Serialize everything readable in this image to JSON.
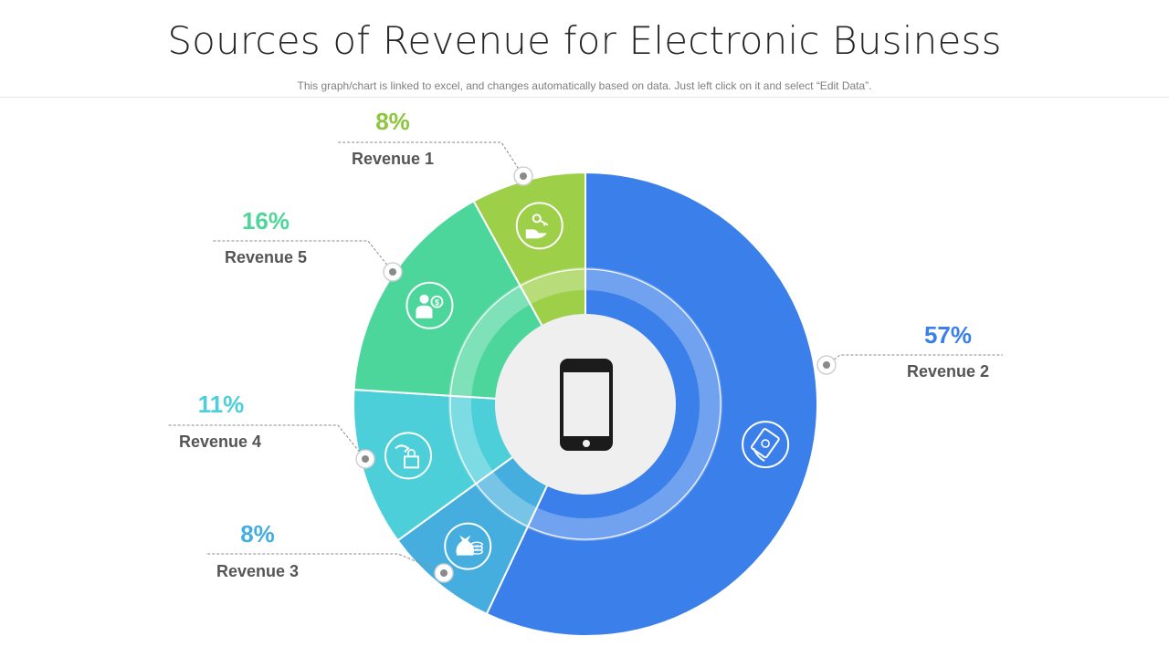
{
  "title": "Sources of Revenue for Electronic Business",
  "subtitle": "This graph/chart is linked to excel, and changes automatically based on data. Just left click on it and select “Edit Data”.",
  "center_icon": "smartphone-icon",
  "chart_data": {
    "type": "pie",
    "variant": "donut",
    "start": "top",
    "direction": "clockwise",
    "slices": [
      {
        "label": "Revenue 2",
        "value": 57,
        "display": "57%",
        "color": "#3b7fea",
        "label_color": "#3b7fea",
        "icon": "hand-money-icon"
      },
      {
        "label": "Revenue 3",
        "value": 8,
        "display": "8%",
        "color": "#45aede",
        "label_color": "#45aede",
        "icon": "money-bag-coins-icon"
      },
      {
        "label": "Revenue 4",
        "value": 11,
        "display": "11%",
        "color": "#4ccfd8",
        "label_color": "#4ccfd8",
        "icon": "hand-shopping-bag-icon"
      },
      {
        "label": "Revenue 5",
        "value": 16,
        "display": "16%",
        "color": "#4dd69b",
        "label_color": "#4dd69b",
        "icon": "businessman-money-icon"
      },
      {
        "label": "Revenue 1",
        "value": 8,
        "display": "8%",
        "color": "#9ecf48",
        "label_color": "#8cc63f",
        "icon": "hand-key-icon"
      }
    ]
  }
}
